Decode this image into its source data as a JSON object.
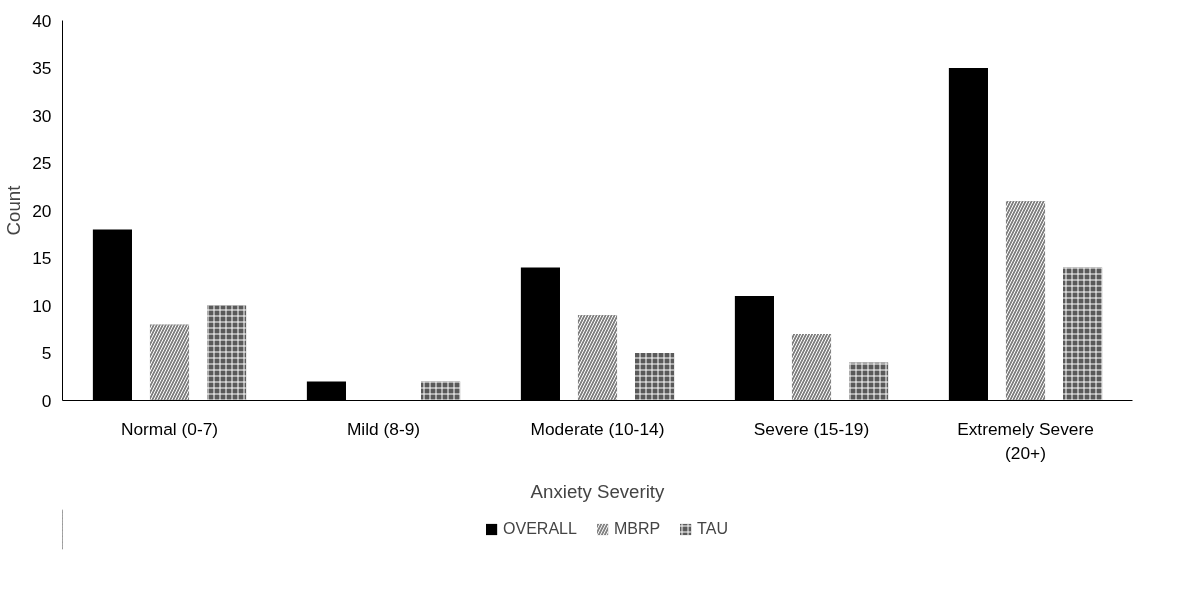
{
  "chart_data": {
    "type": "bar",
    "xlabel": "Anxiety Severity",
    "ylabel": "Count",
    "categories": [
      "Normal (0-7)",
      "Mild (8-9)",
      "Moderate (10-14)",
      "Severe (15-19)",
      "Extremely Severe (20+)"
    ],
    "series": [
      {
        "name": "OVERALL",
        "color": "#000000",
        "values": [
          18,
          2,
          14,
          11,
          35
        ]
      },
      {
        "name": "MBRP",
        "color": "#808080",
        "values": [
          8,
          0,
          9,
          7,
          21
        ]
      },
      {
        "name": "TAU",
        "color": "#5a5a5a",
        "values": [
          10,
          2,
          5,
          4,
          14
        ]
      }
    ],
    "ylim": [
      0,
      40
    ],
    "yticks": [
      0,
      5,
      10,
      15,
      20,
      25,
      30,
      35,
      40
    ],
    "grid": false,
    "legend": "bottom"
  }
}
